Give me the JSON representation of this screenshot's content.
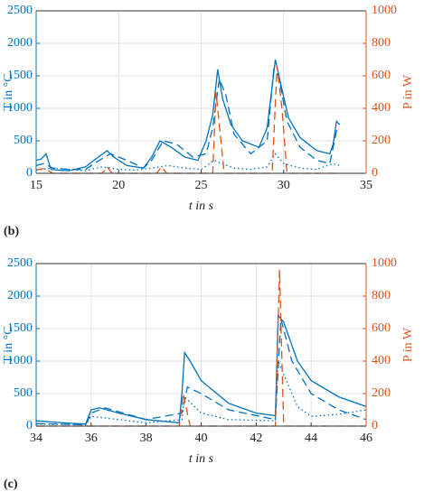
{
  "chart_data": [
    {
      "type": "line",
      "panel": "(b)",
      "xlabel": "t in s",
      "ylabel": "T in °C",
      "y2label": "P in W",
      "xlim": [
        15,
        35
      ],
      "xticks": [
        15,
        20,
        25,
        30,
        35
      ],
      "ylim": [
        0,
        2500
      ],
      "yticks": [
        0,
        500,
        1000,
        1500,
        2000,
        2500
      ],
      "y2lim": [
        0,
        1000
      ],
      "y2ticks": [
        0,
        200,
        400,
        600,
        800,
        1000
      ],
      "grid": true,
      "series": [
        {
          "color": "#0072bd",
          "linestyle": "solid",
          "x": [
            15,
            15.3,
            15.6,
            15.9,
            16.2,
            17,
            18,
            18.5,
            19.3,
            19.7,
            20.5,
            21.5,
            22,
            22.5,
            23.2,
            24,
            24.8,
            25.3,
            25.7,
            26,
            26.3,
            26.8,
            27.5,
            28.5,
            29,
            29.5,
            29.8,
            30.3,
            31,
            32,
            32.8,
            33,
            33.2,
            33.4
          ],
          "values": [
            200,
            220,
            300,
            60,
            50,
            40,
            100,
            200,
            350,
            250,
            120,
            80,
            250,
            500,
            400,
            250,
            200,
            500,
            900,
            1600,
            1150,
            750,
            500,
            400,
            700,
            1750,
            1400,
            850,
            550,
            350,
            300,
            450,
            800,
            750
          ]
        },
        {
          "color": "#0072bd",
          "linestyle": "dashed",
          "x": [
            15,
            15.5,
            16,
            17,
            18,
            18.5,
            19.5,
            20.5,
            21.5,
            22,
            22.7,
            23.5,
            24.5,
            25.3,
            25.7,
            26.1,
            26.5,
            27,
            28,
            29,
            29.4,
            29.7,
            30.2,
            31,
            32,
            32.8,
            33.2,
            33.4
          ],
          "values": [
            120,
            150,
            80,
            60,
            60,
            150,
            300,
            200,
            80,
            200,
            500,
            450,
            250,
            300,
            700,
            1450,
            1200,
            600,
            300,
            500,
            1600,
            1500,
            800,
            400,
            200,
            150,
            650,
            700
          ]
        },
        {
          "color": "#0072bd",
          "linestyle": "dotted",
          "x": [
            15,
            16,
            17,
            18,
            19,
            20,
            21,
            22,
            23,
            24,
            25,
            25.8,
            26.2,
            27,
            28,
            29,
            29.5,
            30,
            31,
            32,
            33,
            33.4
          ],
          "values": [
            50,
            80,
            60,
            40,
            100,
            60,
            50,
            80,
            120,
            80,
            60,
            200,
            150,
            80,
            60,
            100,
            300,
            150,
            80,
            60,
            150,
            120
          ]
        },
        {
          "color": "#d95319",
          "linestyle": "dashed",
          "axis": "y2",
          "x": [
            15,
            15.5,
            16,
            19,
            19.3,
            19.6,
            22.3,
            22.6,
            22.9,
            25.7,
            25.9,
            26.1,
            26.4,
            29.3,
            29.6,
            29.9,
            30.2,
            33,
            33.4
          ],
          "values": [
            20,
            30,
            0,
            0,
            40,
            0,
            0,
            40,
            0,
            0,
            500,
            300,
            0,
            0,
            660,
            400,
            0,
            0,
            0
          ]
        }
      ]
    },
    {
      "type": "line",
      "panel": "(c)",
      "xlabel": "t in s",
      "ylabel": "T in °C",
      "y2label": "P in W",
      "xlim": [
        34,
        46
      ],
      "xticks": [
        34,
        36,
        38,
        40,
        42,
        44,
        46
      ],
      "ylim": [
        0,
        2500
      ],
      "yticks": [
        0,
        500,
        1000,
        1500,
        2000,
        2500
      ],
      "y2lim": [
        0,
        1000
      ],
      "y2ticks": [
        0,
        200,
        400,
        600,
        800,
        1000
      ],
      "grid": true,
      "series": [
        {
          "color": "#0072bd",
          "linestyle": "solid",
          "x": [
            34,
            35,
            35.8,
            36,
            36.3,
            37,
            38,
            39.2,
            39.3,
            39.4,
            39.6,
            40,
            41,
            42,
            42.7,
            42.8,
            43,
            43.5,
            44,
            45,
            46
          ],
          "values": [
            80,
            50,
            30,
            250,
            280,
            200,
            100,
            50,
            500,
            1130,
            1000,
            700,
            350,
            200,
            160,
            1700,
            1600,
            1000,
            700,
            450,
            300
          ]
        },
        {
          "color": "#0072bd",
          "linestyle": "dashed",
          "x": [
            34,
            35.8,
            36,
            36.5,
            38,
            39.3,
            39.5,
            40,
            41,
            42.7,
            42.9,
            43.3,
            44,
            45,
            46
          ],
          "values": [
            40,
            20,
            200,
            280,
            100,
            200,
            600,
            500,
            250,
            100,
            1650,
            1000,
            500,
            250,
            100
          ]
        },
        {
          "color": "#0072bd",
          "linestyle": "dotted",
          "x": [
            34,
            35.8,
            36,
            38,
            39.3,
            39.4,
            40,
            41,
            42.7,
            42.8,
            43.5,
            44,
            45,
            46
          ],
          "values": [
            30,
            20,
            150,
            50,
            100,
            450,
            200,
            100,
            80,
            1000,
            300,
            150,
            180,
            250
          ]
        },
        {
          "color": "#d95319",
          "linestyle": "dashed",
          "axis": "y2",
          "x": [
            34,
            39.2,
            39.35,
            39.6,
            42.7,
            42.85,
            43,
            46
          ],
          "values": [
            0,
            0,
            200,
            0,
            0,
            960,
            0,
            0
          ]
        }
      ]
    }
  ]
}
